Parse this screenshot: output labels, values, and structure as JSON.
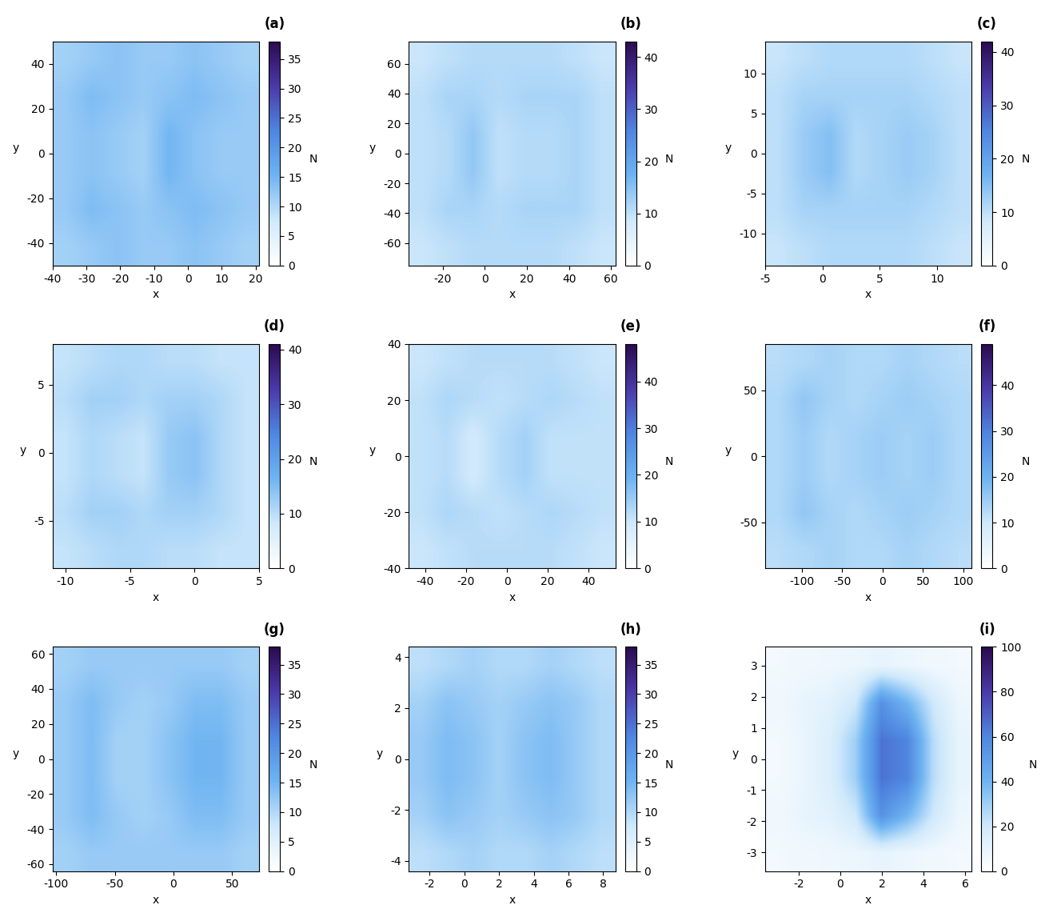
{
  "chart_data": [
    {
      "type": "heatmap",
      "title": "(a)",
      "x_label": "x",
      "y_label": "y",
      "colorbar_label": "N",
      "xlim": [
        -40,
        21
      ],
      "xticks": [
        -40,
        -30,
        -20,
        -10,
        0,
        10,
        20
      ],
      "ylim": [
        -50,
        50
      ],
      "yticks": [
        -40,
        -20,
        0,
        20,
        40
      ],
      "colorbar_range": [
        0,
        38
      ],
      "colorbar_ticks": [
        0,
        5,
        10,
        15,
        20,
        25,
        30,
        35
      ],
      "cells": [
        [
          11,
          12,
          13,
          12,
          12,
          13,
          12,
          11
        ],
        [
          12,
          14,
          13,
          12,
          13,
          14,
          13,
          12
        ],
        [
          12,
          13,
          12,
          11,
          15,
          13,
          12,
          12
        ],
        [
          12,
          13,
          12,
          11,
          15,
          13,
          12,
          12
        ],
        [
          12,
          14,
          13,
          12,
          13,
          14,
          13,
          12
        ],
        [
          11,
          12,
          13,
          12,
          12,
          13,
          12,
          11
        ]
      ]
    },
    {
      "type": "heatmap",
      "title": "(b)",
      "x_label": "x",
      "y_label": "y",
      "colorbar_label": "N",
      "xlim": [
        -36,
        62
      ],
      "xticks": [
        -20,
        0,
        20,
        40,
        60
      ],
      "ylim": [
        -75,
        75
      ],
      "yticks": [
        -60,
        -40,
        -20,
        0,
        20,
        40,
        60
      ],
      "colorbar_range": [
        0,
        43
      ],
      "colorbar_ticks": [
        0,
        10,
        20,
        30,
        40
      ],
      "cells": [
        [
          9,
          10,
          11,
          11,
          11,
          11,
          10,
          9
        ],
        [
          10,
          12,
          12,
          11,
          12,
          12,
          12,
          10
        ],
        [
          10,
          11,
          14,
          10,
          11,
          11,
          12,
          10
        ],
        [
          10,
          11,
          14,
          10,
          11,
          11,
          12,
          10
        ],
        [
          10,
          12,
          12,
          11,
          12,
          12,
          12,
          10
        ],
        [
          9,
          10,
          11,
          11,
          11,
          11,
          10,
          9
        ]
      ]
    },
    {
      "type": "heatmap",
      "title": "(c)",
      "x_label": "x",
      "y_label": "y",
      "colorbar_label": "N",
      "xlim": [
        -5,
        13
      ],
      "xticks": [
        -5,
        0,
        5,
        10
      ],
      "ylim": [
        -14,
        14
      ],
      "yticks": [
        -10,
        -5,
        0,
        5,
        10
      ],
      "colorbar_range": [
        0,
        42
      ],
      "colorbar_ticks": [
        0,
        10,
        20,
        30,
        40
      ],
      "cells": [
        [
          9,
          10,
          11,
          11,
          11,
          11,
          10,
          9
        ],
        [
          10,
          12,
          12,
          12,
          12,
          12,
          11,
          10
        ],
        [
          10,
          13,
          15,
          11,
          12,
          13,
          12,
          10
        ],
        [
          10,
          13,
          15,
          11,
          12,
          13,
          12,
          10
        ],
        [
          10,
          12,
          12,
          12,
          12,
          12,
          11,
          10
        ],
        [
          9,
          10,
          11,
          11,
          11,
          11,
          10,
          9
        ]
      ]
    },
    {
      "type": "heatmap",
      "title": "(d)",
      "x_label": "x",
      "y_label": "y",
      "colorbar_label": "N",
      "xlim": [
        -11,
        5
      ],
      "xticks": [
        -10,
        -5,
        0,
        5
      ],
      "ylim": [
        -8.5,
        8
      ],
      "yticks": [
        -5,
        0,
        5
      ],
      "colorbar_range": [
        0,
        41
      ],
      "colorbar_ticks": [
        0,
        10,
        20,
        30,
        40
      ],
      "cells": [
        [
          9,
          10,
          11,
          11,
          10,
          10,
          9,
          9
        ],
        [
          10,
          12,
          12,
          11,
          12,
          12,
          11,
          9
        ],
        [
          9,
          11,
          10,
          9,
          13,
          14,
          11,
          9
        ],
        [
          9,
          11,
          10,
          9,
          13,
          14,
          11,
          9
        ],
        [
          10,
          12,
          12,
          11,
          12,
          12,
          11,
          9
        ],
        [
          9,
          10,
          11,
          11,
          10,
          10,
          9,
          9
        ]
      ]
    },
    {
      "type": "heatmap",
      "title": "(e)",
      "x_label": "x",
      "y_label": "y",
      "colorbar_label": "N",
      "xlim": [
        -48,
        53
      ],
      "xticks": [
        -40,
        -20,
        0,
        20,
        40
      ],
      "ylim": [
        -40,
        40
      ],
      "yticks": [
        -40,
        -20,
        0,
        20,
        40
      ],
      "colorbar_range": [
        0,
        48
      ],
      "colorbar_ticks": [
        0,
        10,
        20,
        30,
        40
      ],
      "cells": [
        [
          10,
          11,
          12,
          12,
          12,
          12,
          11,
          10
        ],
        [
          11,
          13,
          12,
          11,
          12,
          13,
          12,
          11
        ],
        [
          11,
          12,
          9,
          12,
          14,
          11,
          11,
          11
        ],
        [
          11,
          12,
          9,
          12,
          14,
          11,
          11,
          11
        ],
        [
          11,
          13,
          12,
          11,
          12,
          13,
          12,
          11
        ],
        [
          10,
          11,
          12,
          12,
          12,
          12,
          11,
          10
        ]
      ]
    },
    {
      "type": "heatmap",
      "title": "(f)",
      "x_label": "x",
      "y_label": "y",
      "colorbar_label": "N",
      "xlim": [
        -145,
        110
      ],
      "xticks": [
        -100,
        -50,
        0,
        50,
        100
      ],
      "ylim": [
        -85,
        85
      ],
      "yticks": [
        -50,
        0,
        50
      ],
      "colorbar_range": [
        0,
        49
      ],
      "colorbar_ticks": [
        0,
        10,
        20,
        30,
        40
      ],
      "cells": [
        [
          12,
          13,
          14,
          13,
          13,
          14,
          13,
          12
        ],
        [
          13,
          16,
          14,
          13,
          14,
          15,
          14,
          13
        ],
        [
          13,
          15,
          13,
          14,
          15,
          14,
          15,
          13
        ],
        [
          13,
          15,
          13,
          14,
          15,
          14,
          15,
          13
        ],
        [
          13,
          16,
          14,
          13,
          14,
          15,
          14,
          13
        ],
        [
          12,
          13,
          14,
          13,
          13,
          14,
          13,
          12
        ]
      ]
    },
    {
      "type": "heatmap",
      "title": "(g)",
      "x_label": "x",
      "y_label": "y",
      "colorbar_label": "N",
      "xlim": [
        -103,
        73
      ],
      "xticks": [
        -100,
        -50,
        0,
        50
      ],
      "ylim": [
        -64,
        64
      ],
      "yticks": [
        -60,
        -40,
        -20,
        0,
        20,
        40,
        60
      ],
      "colorbar_range": [
        0,
        38
      ],
      "colorbar_ticks": [
        0,
        5,
        10,
        15,
        20,
        25,
        30,
        35
      ],
      "cells": [
        [
          11,
          12,
          12,
          12,
          12,
          12,
          12,
          11
        ],
        [
          12,
          14,
          12,
          11,
          12,
          14,
          14,
          12
        ],
        [
          12,
          14,
          11,
          11,
          13,
          15,
          15,
          12
        ],
        [
          12,
          14,
          11,
          11,
          13,
          15,
          15,
          12
        ],
        [
          12,
          14,
          12,
          11,
          12,
          14,
          14,
          12
        ],
        [
          11,
          12,
          12,
          12,
          12,
          12,
          12,
          11
        ]
      ]
    },
    {
      "type": "heatmap",
      "title": "(h)",
      "x_label": "x",
      "y_label": "y",
      "colorbar_label": "N",
      "xlim": [
        -3.2,
        8.7
      ],
      "xticks": [
        -2,
        0,
        2,
        4,
        6,
        8
      ],
      "ylim": [
        -4.4,
        4.4
      ],
      "yticks": [
        -4,
        -2,
        0,
        2,
        4
      ],
      "colorbar_range": [
        0,
        38
      ],
      "colorbar_ticks": [
        0,
        5,
        10,
        15,
        20,
        25,
        30,
        35
      ],
      "cells": [
        [
          9,
          10,
          11,
          10,
          10,
          11,
          10,
          9
        ],
        [
          11,
          13,
          12,
          11,
          12,
          13,
          12,
          10
        ],
        [
          12,
          14,
          13,
          11,
          13,
          14,
          12,
          10
        ],
        [
          12,
          14,
          13,
          11,
          13,
          14,
          12,
          10
        ],
        [
          11,
          13,
          12,
          11,
          12,
          13,
          12,
          10
        ],
        [
          9,
          10,
          11,
          10,
          10,
          11,
          10,
          9
        ]
      ]
    },
    {
      "type": "heatmap",
      "title": "(i)",
      "x_label": "x",
      "y_label": "y",
      "colorbar_label": "N",
      "xlim": [
        -3.6,
        6.3
      ],
      "xticks": [
        -2,
        0,
        2,
        4,
        6
      ],
      "ylim": [
        -3.6,
        3.6
      ],
      "yticks": [
        -3,
        -2,
        -1,
        0,
        1,
        2,
        3
      ],
      "colorbar_range": [
        0,
        100
      ],
      "colorbar_ticks": [
        0,
        20,
        40,
        60,
        80,
        100
      ],
      "cells": [
        [
          5,
          6,
          7,
          8,
          10,
          8,
          6,
          5
        ],
        [
          6,
          10,
          12,
          20,
          55,
          40,
          20,
          8
        ],
        [
          5,
          9,
          15,
          30,
          65,
          60,
          25,
          10
        ],
        [
          5,
          9,
          15,
          30,
          65,
          60,
          25,
          10
        ],
        [
          6,
          10,
          12,
          20,
          55,
          40,
          20,
          8
        ],
        [
          5,
          6,
          7,
          8,
          10,
          8,
          6,
          5
        ]
      ]
    }
  ]
}
